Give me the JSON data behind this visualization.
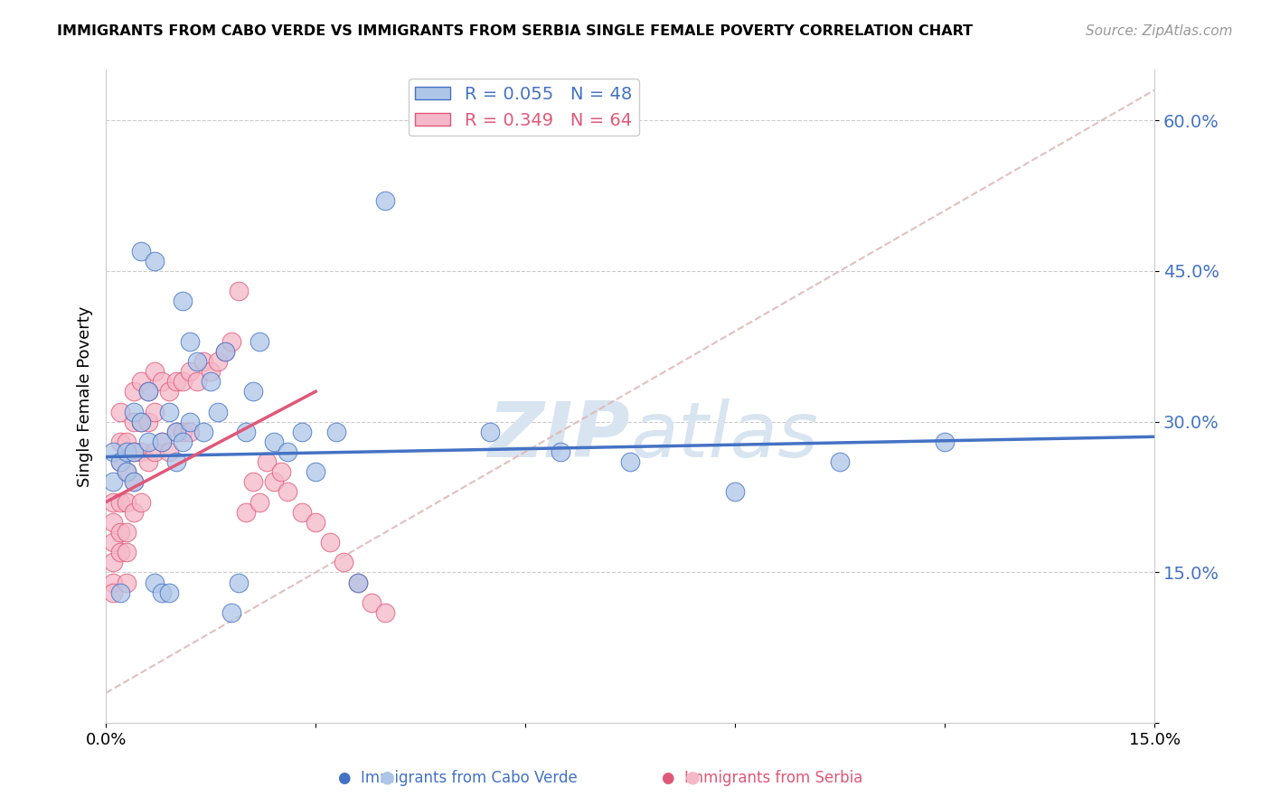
{
  "title": "IMMIGRANTS FROM CABO VERDE VS IMMIGRANTS FROM SERBIA SINGLE FEMALE POVERTY CORRELATION CHART",
  "source": "Source: ZipAtlas.com",
  "ylabel": "Single Female Poverty",
  "y_ticks": [
    0.0,
    0.15,
    0.3,
    0.45,
    0.6
  ],
  "y_tick_labels": [
    "",
    "15.0%",
    "30.0%",
    "45.0%",
    "60.0%"
  ],
  "x_range": [
    0.0,
    0.15
  ],
  "y_range": [
    0.0,
    0.65
  ],
  "cabo_verde_R": 0.055,
  "cabo_verde_N": 48,
  "serbia_R": 0.349,
  "serbia_N": 64,
  "cabo_verde_color": "#aec6e8",
  "serbia_color": "#f5b8c8",
  "cabo_verde_line_color": "#4472c4",
  "serbia_line_color": "#e05878",
  "diagonal_line_color": "#e0b8b8",
  "background_color": "#ffffff",
  "watermark_color": "#d8e4f0",
  "legend_label_cabo": "Immigrants from Cabo Verde",
  "legend_label_serbia": "Immigrants from Serbia",
  "cabo_verde_x": [
    0.001,
    0.001,
    0.002,
    0.002,
    0.003,
    0.003,
    0.004,
    0.004,
    0.004,
    0.005,
    0.005,
    0.006,
    0.006,
    0.007,
    0.007,
    0.008,
    0.008,
    0.009,
    0.009,
    0.01,
    0.01,
    0.011,
    0.011,
    0.012,
    0.012,
    0.013,
    0.014,
    0.015,
    0.016,
    0.017,
    0.018,
    0.019,
    0.02,
    0.021,
    0.022,
    0.024,
    0.026,
    0.028,
    0.03,
    0.033,
    0.036,
    0.04,
    0.055,
    0.065,
    0.075,
    0.09,
    0.105,
    0.12
  ],
  "cabo_verde_y": [
    0.27,
    0.24,
    0.26,
    0.13,
    0.27,
    0.25,
    0.31,
    0.27,
    0.24,
    0.47,
    0.3,
    0.33,
    0.28,
    0.46,
    0.14,
    0.28,
    0.13,
    0.31,
    0.13,
    0.29,
    0.26,
    0.42,
    0.28,
    0.38,
    0.3,
    0.36,
    0.29,
    0.34,
    0.31,
    0.37,
    0.11,
    0.14,
    0.29,
    0.33,
    0.38,
    0.28,
    0.27,
    0.29,
    0.25,
    0.29,
    0.14,
    0.52,
    0.29,
    0.27,
    0.26,
    0.23,
    0.26,
    0.28
  ],
  "serbia_x": [
    0.001,
    0.001,
    0.001,
    0.001,
    0.001,
    0.001,
    0.002,
    0.002,
    0.002,
    0.002,
    0.002,
    0.002,
    0.003,
    0.003,
    0.003,
    0.003,
    0.003,
    0.003,
    0.004,
    0.004,
    0.004,
    0.004,
    0.004,
    0.005,
    0.005,
    0.005,
    0.005,
    0.006,
    0.006,
    0.006,
    0.007,
    0.007,
    0.007,
    0.008,
    0.008,
    0.009,
    0.009,
    0.01,
    0.01,
    0.011,
    0.011,
    0.012,
    0.012,
    0.013,
    0.014,
    0.015,
    0.016,
    0.017,
    0.018,
    0.019,
    0.02,
    0.021,
    0.022,
    0.023,
    0.024,
    0.025,
    0.026,
    0.028,
    0.03,
    0.032,
    0.034,
    0.036,
    0.038,
    0.04
  ],
  "serbia_y": [
    0.2,
    0.18,
    0.16,
    0.14,
    0.13,
    0.22,
    0.31,
    0.28,
    0.26,
    0.19,
    0.22,
    0.17,
    0.28,
    0.25,
    0.22,
    0.19,
    0.17,
    0.14,
    0.33,
    0.3,
    0.27,
    0.24,
    0.21,
    0.34,
    0.3,
    0.27,
    0.22,
    0.33,
    0.3,
    0.26,
    0.35,
    0.31,
    0.27,
    0.34,
    0.28,
    0.33,
    0.27,
    0.34,
    0.29,
    0.34,
    0.29,
    0.35,
    0.29,
    0.34,
    0.36,
    0.35,
    0.36,
    0.37,
    0.38,
    0.43,
    0.21,
    0.24,
    0.22,
    0.26,
    0.24,
    0.25,
    0.23,
    0.21,
    0.2,
    0.18,
    0.16,
    0.14,
    0.12,
    0.11
  ],
  "cabo_verde_line_y0": 0.265,
  "cabo_verde_line_y1": 0.285,
  "serbia_line_x0": 0.0,
  "serbia_line_y0": 0.22,
  "serbia_line_x1": 0.03,
  "serbia_line_y1": 0.33
}
